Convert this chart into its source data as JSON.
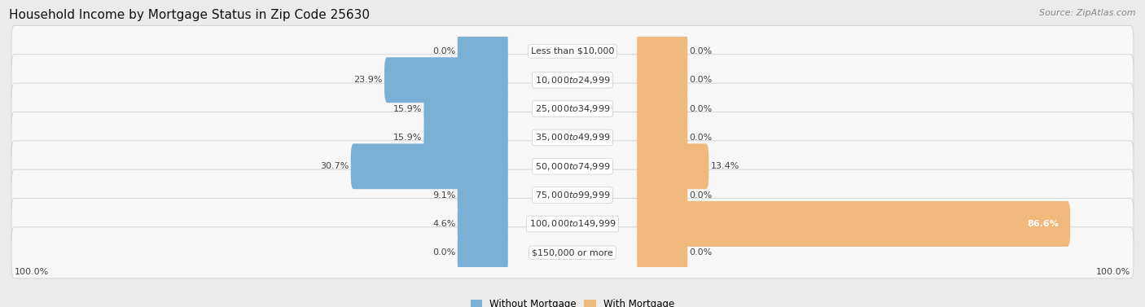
{
  "title": "Household Income by Mortgage Status in Zip Code 25630",
  "source": "Source: ZipAtlas.com",
  "categories": [
    "Less than $10,000",
    "$10,000 to $24,999",
    "$25,000 to $34,999",
    "$35,000 to $49,999",
    "$50,000 to $74,999",
    "$75,000 to $99,999",
    "$100,000 to $149,999",
    "$150,000 or more"
  ],
  "without_mortgage": [
    0.0,
    23.9,
    15.9,
    15.9,
    30.7,
    9.1,
    4.6,
    0.0
  ],
  "with_mortgage": [
    0.0,
    0.0,
    0.0,
    0.0,
    13.4,
    0.0,
    86.6,
    0.0
  ],
  "without_mortgage_color": "#7aafd6",
  "with_mortgage_color": "#f0b87a",
  "background_color": "#ebebeb",
  "row_bg_color": "#f7f7f7",
  "row_edge_color": "#d0d0d0",
  "max_value": 100.0,
  "min_bar_width": 8.0,
  "label_zone_half": 12.0,
  "left_label": "100.0%",
  "right_label": "100.0%",
  "legend_without": "Without Mortgage",
  "legend_with": "With Mortgage",
  "title_fontsize": 11,
  "source_fontsize": 8,
  "bar_height": 0.58,
  "label_fontsize": 8,
  "cat_fontsize": 8
}
